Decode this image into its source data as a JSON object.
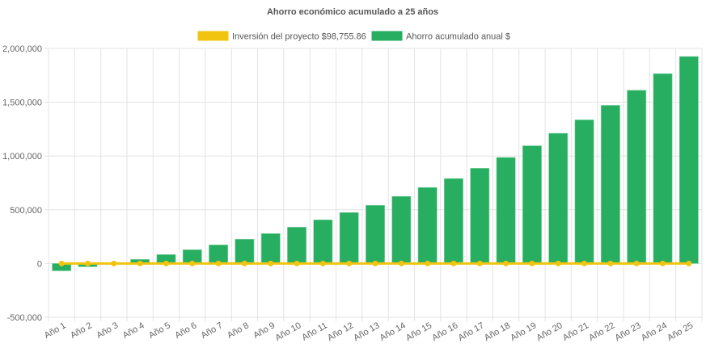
{
  "chart_data": {
    "type": "bar",
    "title": "Ahorro económico acumulado a 25 años",
    "categories": [
      "Año 1",
      "Año 2",
      "Año 3",
      "Año 4",
      "Año 5",
      "Año 6",
      "Año 7",
      "Año 8",
      "Año 9",
      "Año 10",
      "Año 11",
      "Año 12",
      "Año 13",
      "Año 14",
      "Año 15",
      "Año 16",
      "Año 17",
      "Año 18",
      "Año 19",
      "Año 20",
      "Año 21",
      "Año 22",
      "Año 23",
      "Año 24",
      "Año 25"
    ],
    "series": [
      {
        "name": "Inversión del proyecto $98,755.86",
        "type": "line",
        "color": "#f1c40f",
        "values": [
          0,
          0,
          0,
          0,
          0,
          0,
          0,
          0,
          0,
          0,
          0,
          0,
          0,
          0,
          0,
          0,
          0,
          0,
          0,
          0,
          0,
          0,
          0,
          0,
          0
        ]
      },
      {
        "name": "Ahorro acumulado anual $",
        "type": "bar",
        "color": "#27ae60",
        "values": [
          -68000,
          -30000,
          0,
          38000,
          83000,
          128000,
          173000,
          226000,
          278000,
          338000,
          406000,
          474000,
          541000,
          624000,
          707000,
          790000,
          886000,
          986000,
          1095000,
          1211000,
          1336000,
          1471000,
          1611000,
          1765000,
          1925000
        ]
      }
    ],
    "yticks": [
      "2,000,000",
      "1,500,000",
      "1,000,000",
      "500,000",
      "0",
      "-500,000"
    ],
    "ytick_values": [
      2000000,
      1500000,
      1000000,
      500000,
      0,
      -500000
    ],
    "ylim": [
      -500000,
      2000000
    ],
    "xlabel": "",
    "ylabel": "",
    "grid": true,
    "legend": "top"
  }
}
